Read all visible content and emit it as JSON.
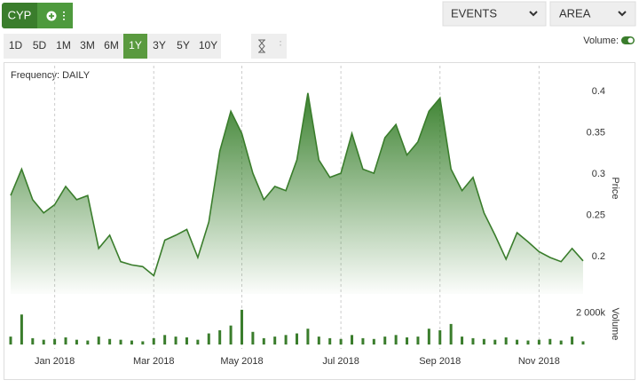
{
  "toolbar": {
    "ticker": "CYP",
    "ranges": [
      "1D",
      "5D",
      "1M",
      "3M",
      "6M",
      "1Y",
      "3Y",
      "5Y",
      "10Y"
    ],
    "active_range": 5,
    "dropdowns": [
      "EVENTS",
      "AREA"
    ],
    "volume_toggle": "Volume:"
  },
  "chart_data": {
    "type": "area",
    "subtitle": "Frequency: DAILY",
    "y_label": "Price",
    "y2_label": "Volume",
    "categories": [
      null,
      null,
      null,
      null,
      "Jan 2018",
      null,
      null,
      null,
      null,
      null,
      null,
      null,
      null,
      "Mar 2018",
      null,
      null,
      null,
      null,
      null,
      null,
      null,
      "May 2018",
      null,
      null,
      null,
      null,
      null,
      null,
      null,
      null,
      "Jul 2018",
      null,
      null,
      null,
      null,
      null,
      null,
      null,
      null,
      "Sep 2018",
      null,
      null,
      null,
      null,
      null,
      null,
      null,
      null,
      "Nov 2018",
      null,
      null,
      null,
      null
    ],
    "series": [
      {
        "color": "#3a7d2c",
        "values": [
          0.274,
          0.306,
          0.269,
          0.253,
          0.263,
          0.285,
          0.269,
          0.274,
          0.21,
          0.226,
          0.194,
          0.19,
          0.188,
          0.177,
          0.22,
          0.226,
          0.233,
          0.199,
          0.242,
          0.328,
          0.376,
          0.349,
          0.301,
          0.269,
          0.285,
          0.28,
          0.317,
          0.398,
          0.317,
          0.296,
          0.301,
          0.349,
          0.306,
          0.301,
          0.344,
          0.36,
          0.323,
          0.339,
          0.376,
          0.392,
          0.306,
          0.28,
          0.296,
          0.253,
          0.226,
          0.197,
          0.229,
          0.218,
          0.206,
          0.199,
          0.194,
          0.21,
          0.195
        ]
      },
      {
        "type": "bar",
        "axis": "y2",
        "color": "#3a7d2c",
        "values": [
          500000,
          1900000,
          400000,
          300000,
          350000,
          450000,
          300000,
          250000,
          500000,
          350000,
          300000,
          250000,
          200000,
          400000,
          600000,
          500000,
          450000,
          300000,
          700000,
          900000,
          1200000,
          2200000,
          800000,
          400000,
          500000,
          600000,
          700000,
          1000000,
          500000,
          400000,
          350000,
          600000,
          400000,
          350000,
          500000,
          600000,
          450000,
          500000,
          1000000,
          900000,
          1300000,
          500000,
          400000,
          350000,
          300000,
          450000,
          300000,
          250000,
          300000,
          350000,
          250000,
          500000,
          200000
        ]
      }
    ],
    "ylim": [
      0.155,
      0.415
    ],
    "yticks": [
      0.2,
      0.25,
      0.3,
      0.35,
      0.4
    ],
    "y2lim": [
      0,
      2700000
    ],
    "y2ticks": [
      {
        "value": 2000000,
        "label": "2 000k"
      }
    ],
    "grid": "x"
  }
}
